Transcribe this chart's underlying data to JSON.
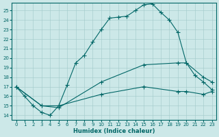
{
  "title": "",
  "xlabel": "Humidex (Indice chaleur)",
  "background_color": "#cce8e8",
  "grid_color": "#a0c8c8",
  "line_color": "#006666",
  "xlim": [
    -0.5,
    23.5
  ],
  "ylim": [
    13.5,
    25.8
  ],
  "xticks": [
    0,
    1,
    2,
    3,
    4,
    5,
    6,
    7,
    8,
    9,
    10,
    11,
    12,
    13,
    14,
    15,
    16,
    17,
    18,
    19,
    20,
    21,
    22,
    23
  ],
  "yticks": [
    14,
    15,
    16,
    17,
    18,
    19,
    20,
    21,
    22,
    23,
    24,
    25
  ],
  "line1_x": [
    0,
    1,
    2,
    3,
    4,
    5,
    6,
    7,
    8,
    9,
    10,
    11,
    12,
    13,
    14,
    15,
    16,
    17,
    18,
    19,
    20,
    21,
    22,
    23
  ],
  "line1_y": [
    17.0,
    16.0,
    15.0,
    14.3,
    14.0,
    15.0,
    17.2,
    19.5,
    20.3,
    21.7,
    23.0,
    24.2,
    24.3,
    24.4,
    25.0,
    25.6,
    25.7,
    24.8,
    24.0,
    22.7,
    19.5,
    18.2,
    17.5,
    16.7
  ],
  "line2_x": [
    0,
    3,
    5,
    10,
    15,
    19,
    20,
    22,
    23
  ],
  "line2_y": [
    17.0,
    15.0,
    14.8,
    17.5,
    19.3,
    19.5,
    19.5,
    18.0,
    17.5
  ],
  "line3_x": [
    0,
    3,
    5,
    10,
    15,
    19,
    20,
    22,
    23
  ],
  "line3_y": [
    17.0,
    15.0,
    15.0,
    16.2,
    17.0,
    16.5,
    16.5,
    16.2,
    16.5
  ],
  "markersize": 3,
  "linewidth": 0.8
}
